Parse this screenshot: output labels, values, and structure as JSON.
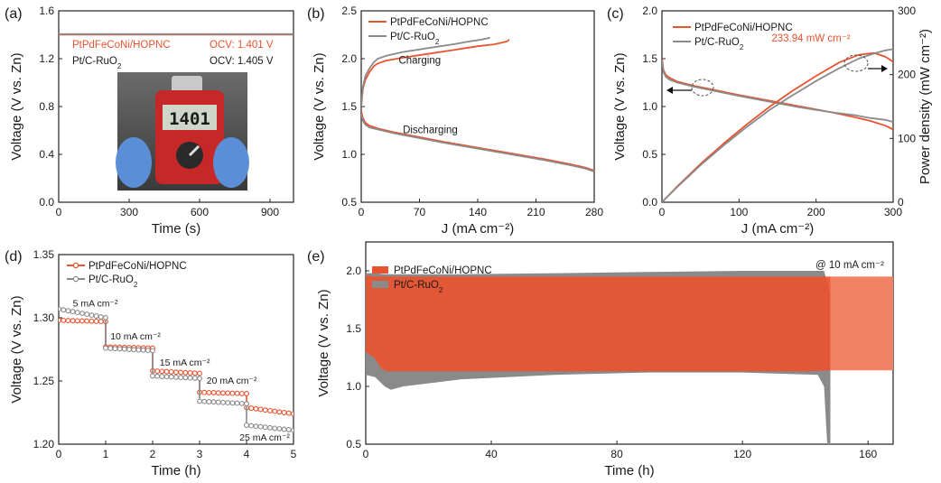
{
  "colors": {
    "red": "#e9532f",
    "gray": "#8a8a8a",
    "red_light": "#f2866a",
    "axis": "#222222"
  },
  "chart_data": [
    {
      "id": "a",
      "panel_label": "(a)",
      "type": "line",
      "xlabel": "Time (s)",
      "ylabel": "Voltage (V vs. Zn)",
      "xlim": [
        0,
        1000
      ],
      "ylim": [
        0,
        1.6
      ],
      "xticks": [
        "0",
        "300",
        "600",
        "900"
      ],
      "xtick_values": [
        0,
        300,
        600,
        900
      ],
      "yticks": [
        "0.0",
        "0.4",
        "0.8",
        "1.2",
        "1.6"
      ],
      "ytick_values": [
        0.0,
        0.4,
        0.8,
        1.2,
        1.6
      ],
      "legend": [
        {
          "label": "PtPdFeCoNi/HOPNC",
          "ocv": "OCV: 1.401 V",
          "color": "red"
        },
        {
          "label": "Pt/C-RuO2",
          "ocv": "OCV: 1.405 V",
          "color": "gray"
        }
      ],
      "series": [
        {
          "name": "PtPdFeCoNi/HOPNC",
          "color": "red",
          "x": [
            0,
            1000
          ],
          "y": [
            1.401,
            1.401
          ]
        },
        {
          "name": "Pt/C-RuO2",
          "color": "gray",
          "x": [
            0,
            1000
          ],
          "y": [
            1.405,
            1.405
          ]
        }
      ],
      "inset": {
        "meter_reading": "1401"
      }
    },
    {
      "id": "b",
      "panel_label": "(b)",
      "type": "line",
      "xlabel": "J (mA cm⁻²)",
      "ylabel": "Voltage (V vs. Zn)",
      "xlim": [
        0,
        280
      ],
      "ylim": [
        0.5,
        2.5
      ],
      "xticks": [
        "0",
        "70",
        "140",
        "210",
        "280"
      ],
      "xtick_values": [
        0,
        70,
        140,
        210,
        280
      ],
      "yticks": [
        "0.5",
        "1.0",
        "1.5",
        "2.0",
        "2.5"
      ],
      "ytick_values": [
        0.5,
        1.0,
        1.5,
        2.0,
        2.5
      ],
      "legend": [
        {
          "label": "PtPdFeCoNi/HOPNC",
          "color": "red"
        },
        {
          "label": "Pt/C-RuO2",
          "color": "gray"
        }
      ],
      "annotations": [
        {
          "text": "Charging",
          "x": 45,
          "y": 1.95
        },
        {
          "text": "Discharging",
          "x": 50,
          "y": 1.22
        }
      ],
      "series": [
        {
          "name": "PtPdFeCoNi/HOPNC charge",
          "color": "red",
          "x": [
            0,
            2,
            5,
            10,
            15,
            20,
            30,
            50,
            80,
            110,
            140,
            160,
            175,
            178
          ],
          "y": [
            1.5,
            1.68,
            1.78,
            1.86,
            1.92,
            1.95,
            1.98,
            2.01,
            2.05,
            2.09,
            2.13,
            2.15,
            2.18,
            2.2
          ]
        },
        {
          "name": "Pt/C-RuO2 charge",
          "color": "gray",
          "x": [
            0,
            2,
            5,
            10,
            15,
            20,
            30,
            50,
            80,
            110,
            130,
            145,
            155
          ],
          "y": [
            1.5,
            1.7,
            1.82,
            1.9,
            1.96,
            2.0,
            2.03,
            2.07,
            2.11,
            2.15,
            2.18,
            2.2,
            2.22
          ]
        },
        {
          "name": "PtPdFeCoNi/HOPNC discharge",
          "color": "red",
          "x": [
            0,
            2,
            5,
            10,
            20,
            40,
            70,
            100,
            140,
            180,
            220,
            250,
            270,
            280
          ],
          "y": [
            1.45,
            1.38,
            1.33,
            1.3,
            1.27,
            1.23,
            1.18,
            1.13,
            1.07,
            1.01,
            0.95,
            0.9,
            0.86,
            0.83
          ]
        },
        {
          "name": "Pt/C-RuO2 discharge",
          "color": "gray",
          "x": [
            0,
            2,
            5,
            10,
            20,
            40,
            70,
            100,
            140,
            180,
            220,
            250,
            270,
            280
          ],
          "y": [
            1.42,
            1.35,
            1.31,
            1.28,
            1.26,
            1.22,
            1.17,
            1.12,
            1.06,
            1.0,
            0.94,
            0.89,
            0.85,
            0.82
          ]
        }
      ]
    },
    {
      "id": "c",
      "panel_label": "(c)",
      "type": "line",
      "xlabel": "J (mA cm⁻²)",
      "ylabel": "Voltage (V vs. Zn)",
      "y2label": "Power density (mW cm⁻²)",
      "xlim": [
        0,
        300
      ],
      "ylim": [
        0,
        2
      ],
      "y2lim": [
        0,
        300
      ],
      "xticks": [
        "0",
        "100",
        "200",
        "300"
      ],
      "xtick_values": [
        0,
        100,
        200,
        300
      ],
      "yticks": [
        "0.0",
        "0.5",
        "1.0",
        "1.5",
        "2.0"
      ],
      "ytick_values": [
        0,
        0.5,
        1.0,
        1.5,
        2.0
      ],
      "y2ticks": [
        "0",
        "100",
        "200",
        "300"
      ],
      "y2tick_values": [
        0,
        100,
        200,
        300
      ],
      "legend": [
        {
          "label": "PtPdFeCoNi/HOPNC",
          "color": "red"
        },
        {
          "label": "Pt/C-RuO2",
          "color": "gray"
        }
      ],
      "annotations": [
        {
          "text": "233.94 mW cm⁻²",
          "color": "red",
          "x": 215,
          "y": 1.8
        }
      ],
      "series": [
        {
          "name": "PtPdFeCoNi/HOPNC voltage",
          "color": "red",
          "axis": "left",
          "x": [
            0,
            2,
            5,
            10,
            20,
            40,
            70,
            100,
            140,
            180,
            220,
            250,
            270,
            290,
            300
          ],
          "y": [
            1.5,
            1.38,
            1.33,
            1.3,
            1.26,
            1.22,
            1.17,
            1.12,
            1.06,
            1.0,
            0.94,
            0.89,
            0.85,
            0.8,
            0.76
          ]
        },
        {
          "name": "Pt/C-RuO2 voltage",
          "color": "gray",
          "axis": "left",
          "x": [
            0,
            2,
            5,
            10,
            20,
            40,
            70,
            100,
            140,
            180,
            220,
            250,
            270,
            290,
            300
          ],
          "y": [
            1.48,
            1.36,
            1.31,
            1.28,
            1.25,
            1.21,
            1.16,
            1.11,
            1.05,
            0.99,
            0.94,
            0.91,
            0.88,
            0.86,
            0.84
          ]
        },
        {
          "name": "PtPdFeCoNi/HOPNC power",
          "color": "red",
          "axis": "right",
          "x": [
            0,
            20,
            50,
            80,
            110,
            140,
            170,
            200,
            230,
            255,
            275,
            290,
            300
          ],
          "y": [
            0,
            25,
            60,
            92,
            122,
            150,
            175,
            198,
            219,
            231,
            234,
            228,
            220
          ]
        },
        {
          "name": "Pt/C-RuO2 power",
          "color": "gray",
          "axis": "right",
          "x": [
            0,
            20,
            50,
            80,
            110,
            140,
            170,
            200,
            230,
            255,
            275,
            290,
            300
          ],
          "y": [
            0,
            24,
            58,
            89,
            118,
            145,
            168,
            190,
            210,
            225,
            233,
            238,
            240
          ]
        }
      ]
    },
    {
      "id": "d",
      "panel_label": "(d)",
      "type": "line",
      "xlabel": "Time (h)",
      "ylabel": "Voltage (V vs. Zn)",
      "xlim": [
        0,
        5
      ],
      "ylim": [
        1.2,
        1.35
      ],
      "xticks": [
        "0",
        "1",
        "2",
        "3",
        "4",
        "5"
      ],
      "xtick_values": [
        0,
        1,
        2,
        3,
        4,
        5
      ],
      "yticks": [
        "1.20",
        "1.25",
        "1.30",
        "1.35"
      ],
      "ytick_values": [
        1.2,
        1.25,
        1.3,
        1.35
      ],
      "legend": [
        {
          "label": "PtPdFeCoNi/HOPNC",
          "color": "red"
        },
        {
          "label": "Pt/C-RuO2",
          "color": "gray"
        }
      ],
      "annotations": [
        {
          "text": "5 mA cm⁻²",
          "x": 0.3,
          "y": 1.309
        },
        {
          "text": "10 mA cm⁻²",
          "x": 1.1,
          "y": 1.283
        },
        {
          "text": "15 mA cm⁻²",
          "x": 2.15,
          "y": 1.262
        },
        {
          "text": "20 mA cm⁻²",
          "x": 3.15,
          "y": 1.248
        },
        {
          "text": "25 mA cm⁻²",
          "x": 3.85,
          "y": 1.203
        }
      ],
      "series": [
        {
          "name": "PtPdFeCoNi/HOPNC",
          "color": "red",
          "marker": "circle",
          "steps": [
            [
              0,
              1,
              1.298,
              1.297
            ],
            [
              1,
              2,
              1.277,
              1.276
            ],
            [
              2,
              3,
              1.258,
              1.256
            ],
            [
              3,
              4,
              1.241,
              1.24
            ],
            [
              4,
              5,
              1.229,
              1.224
            ]
          ]
        },
        {
          "name": "Pt/C-RuO2",
          "color": "gray",
          "marker": "circle",
          "steps": [
            [
              0,
              1,
              1.307,
              1.3
            ],
            [
              1,
              2,
              1.276,
              1.274
            ],
            [
              2,
              3,
              1.254,
              1.252
            ],
            [
              3,
              4,
              1.234,
              1.232
            ],
            [
              4,
              5,
              1.215,
              1.211
            ]
          ]
        }
      ]
    },
    {
      "id": "e",
      "panel_label": "(e)",
      "type": "area",
      "xlabel": "Time (h)",
      "ylabel": "Voltage (V vs. Zn)",
      "xlim": [
        0,
        168
      ],
      "ylim": [
        0.5,
        2.25
      ],
      "xticks": [
        "0",
        "40",
        "80",
        "120",
        "160"
      ],
      "xtick_values": [
        0,
        40,
        80,
        120,
        160
      ],
      "yticks": [
        "0.5",
        "1.0",
        "1.5",
        "2.0"
      ],
      "ytick_values": [
        0.5,
        1.0,
        1.5,
        2.0
      ],
      "legend": [
        {
          "label": "PtPdFeCoNi/HOPNC",
          "color": "red"
        },
        {
          "label": "Pt/C-RuO2",
          "color": "gray"
        }
      ],
      "annotations": [
        {
          "text": "@ 10 mA cm⁻²",
          "x": 135,
          "y": 2.1
        }
      ],
      "series": [
        {
          "name": "Pt/C-RuO2",
          "color": "gray",
          "x": [
            0,
            3,
            6,
            8,
            12,
            30,
            60,
            90,
            120,
            144,
            146,
            147,
            148
          ],
          "upper": [
            1.98,
            1.98,
            1.97,
            1.97,
            1.97,
            1.97,
            1.98,
            1.99,
            2.0,
            2.0,
            2.0,
            1.9,
            1.8
          ],
          "lower": [
            1.1,
            1.08,
            1.0,
            0.97,
            1.0,
            1.06,
            1.1,
            1.12,
            1.12,
            1.1,
            1.0,
            0.5,
            0.5
          ]
        },
        {
          "name": "PtPdFeCoNi/HOPNC",
          "color": "red",
          "x": [
            0,
            3,
            5,
            7,
            20,
            60,
            100,
            140,
            148,
            152,
            168
          ],
          "upper": [
            1.96,
            1.95,
            1.95,
            1.95,
            1.95,
            1.95,
            1.95,
            1.95,
            1.95,
            1.95,
            1.95
          ],
          "lower": [
            1.3,
            1.24,
            1.15,
            1.13,
            1.13,
            1.13,
            1.13,
            1.13,
            1.14,
            1.14,
            1.14
          ]
        }
      ]
    }
  ]
}
